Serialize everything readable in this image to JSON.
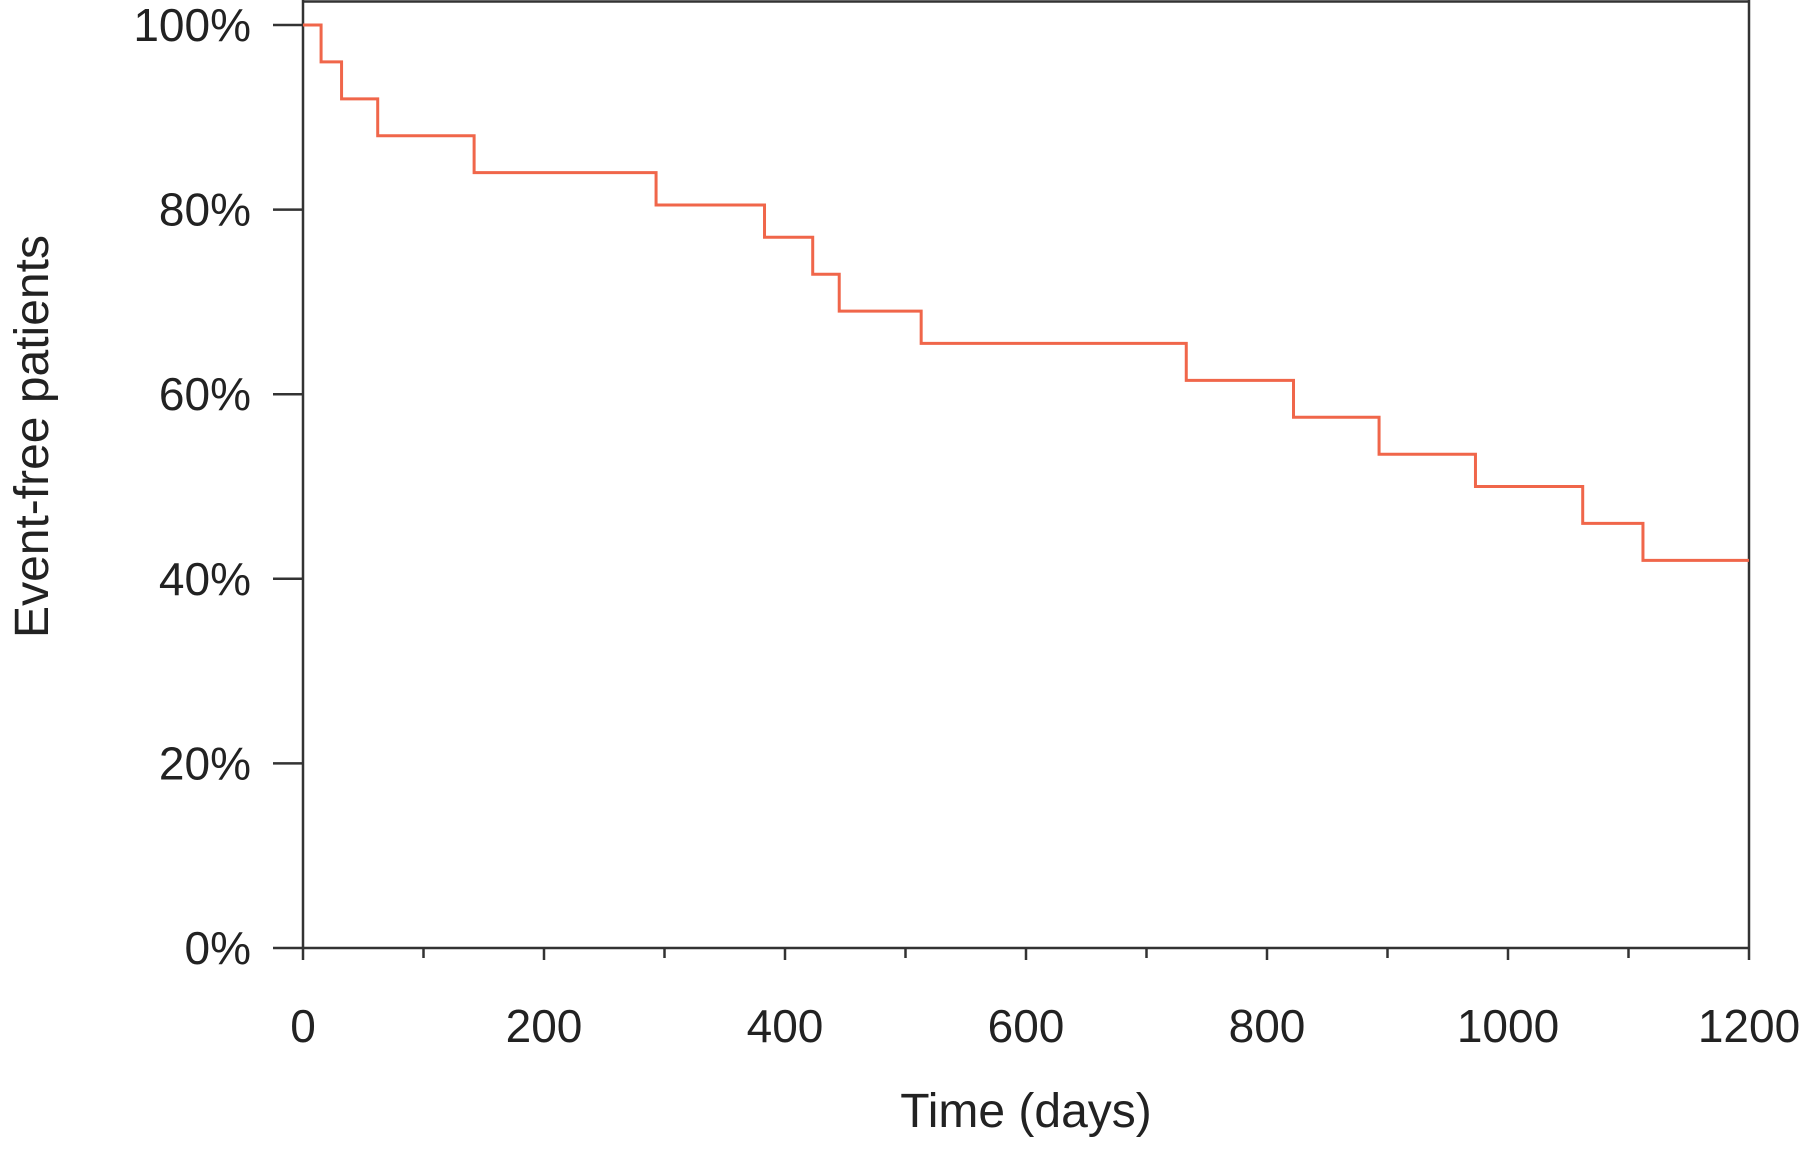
{
  "chart_data": {
    "type": "line",
    "step": true,
    "title": "",
    "xlabel": "Time (days)",
    "ylabel": "Event-free patients",
    "xlim": [
      0,
      1200
    ],
    "ylim": [
      0,
      100
    ],
    "x_ticks": [
      0,
      200,
      400,
      600,
      800,
      1000,
      1200
    ],
    "x_tick_labels": [
      "0",
      "200",
      "400",
      "600",
      "800",
      "1000",
      "1200"
    ],
    "x_minor_ticks": [
      100,
      300,
      500,
      700,
      900,
      1100
    ],
    "y_ticks": [
      0,
      20,
      40,
      60,
      80,
      100
    ],
    "y_tick_labels": [
      "0%",
      "20%",
      "40%",
      "60%",
      "80%",
      "100%"
    ],
    "grid": false,
    "series": [
      {
        "color": "#f0664a",
        "points": [
          {
            "x": 0,
            "y": 100
          },
          {
            "x": 15,
            "y": 96
          },
          {
            "x": 32,
            "y": 92
          },
          {
            "x": 62,
            "y": 88
          },
          {
            "x": 142,
            "y": 84
          },
          {
            "x": 293,
            "y": 80.5
          },
          {
            "x": 383,
            "y": 77
          },
          {
            "x": 423,
            "y": 73
          },
          {
            "x": 445,
            "y": 69
          },
          {
            "x": 513,
            "y": 65.5
          },
          {
            "x": 733,
            "y": 61.5
          },
          {
            "x": 822,
            "y": 57.5
          },
          {
            "x": 893,
            "y": 53.5
          },
          {
            "x": 973,
            "y": 50
          },
          {
            "x": 1062,
            "y": 46
          },
          {
            "x": 1112,
            "y": 42
          },
          {
            "x": 1200,
            "y": 42
          }
        ]
      }
    ]
  }
}
